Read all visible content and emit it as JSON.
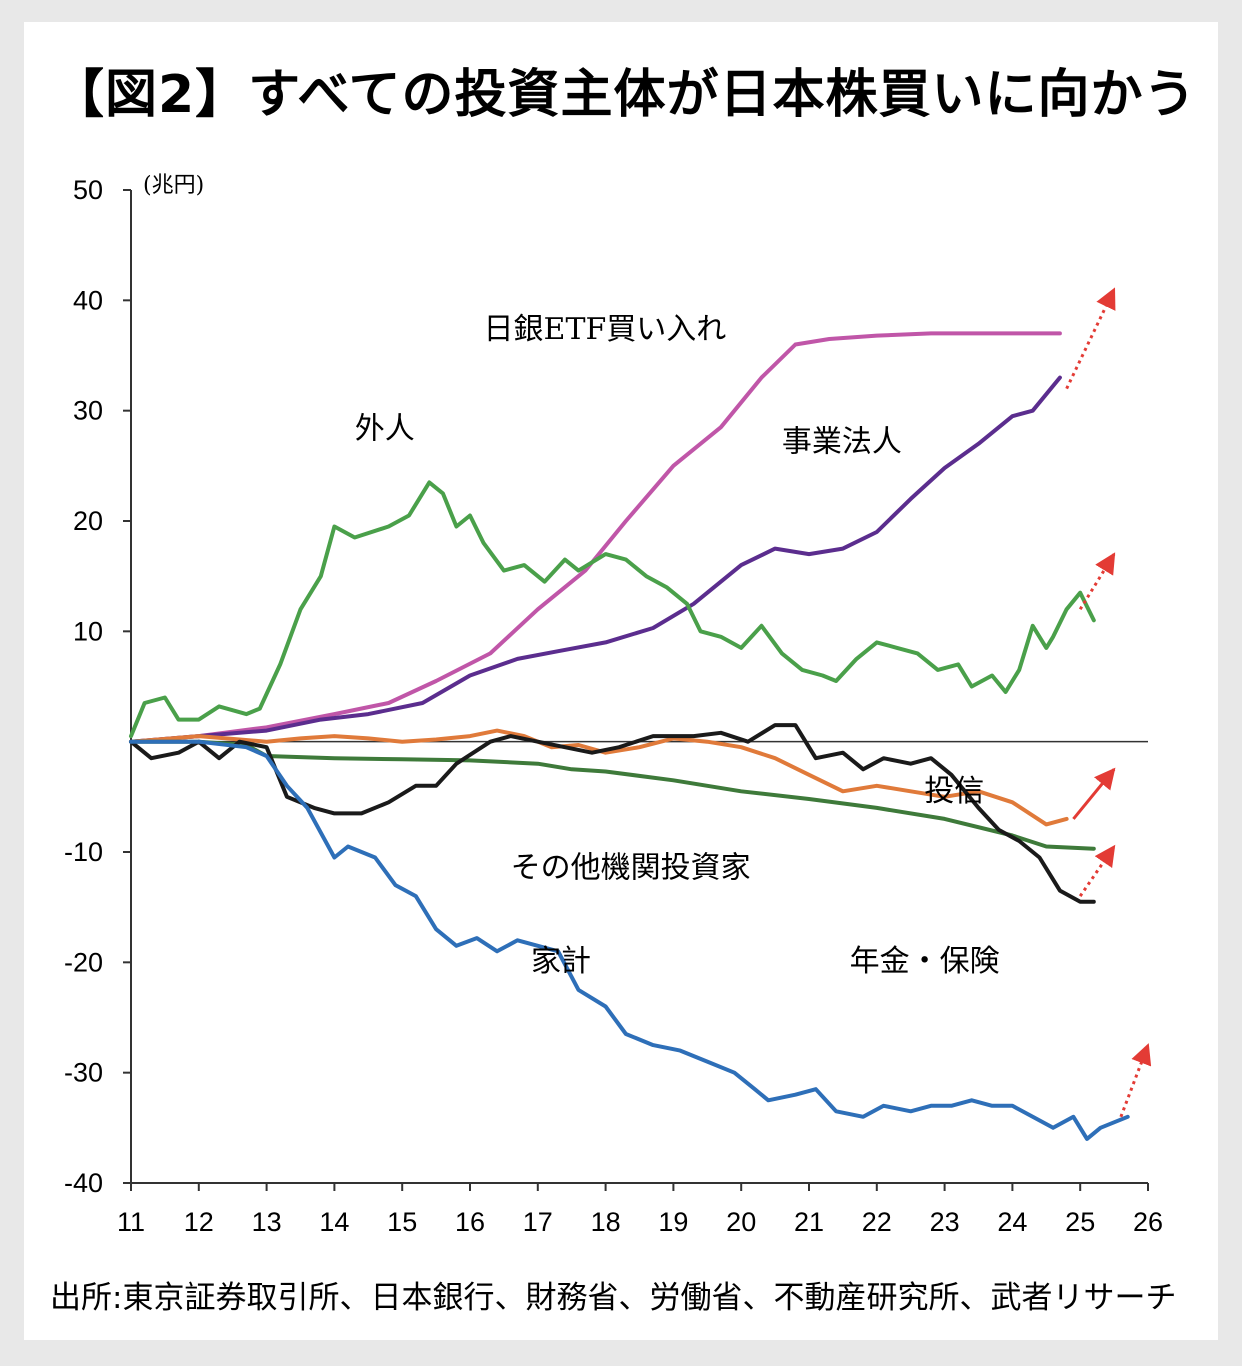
{
  "title": "【図2】すべての投資主体が日本株買いに向かう",
  "source": "出所:東京証券取引所、日本銀行、財務省、労働省、不動産研究所、武者リサーチ",
  "chart_data": {
    "type": "line",
    "unit": "(兆円)",
    "ylim": [
      -40,
      50
    ],
    "yticks": [
      50,
      40,
      30,
      20,
      10,
      -10,
      -20,
      -30,
      -40
    ],
    "xlim": [
      11,
      26
    ],
    "xticks": [
      "11",
      "12",
      "13",
      "14",
      "15",
      "16",
      "17",
      "18",
      "19",
      "20",
      "21",
      "22",
      "23",
      "24",
      "25",
      "26"
    ],
    "series": [
      {
        "name": "日銀ETF買い入れ",
        "color": "#c056a8",
        "points": [
          [
            11,
            0
          ],
          [
            12,
            0.5
          ],
          [
            13,
            1.3
          ],
          [
            14,
            2.5
          ],
          [
            14.8,
            3.5
          ],
          [
            15.5,
            5.5
          ],
          [
            16.3,
            8
          ],
          [
            17,
            12
          ],
          [
            17.7,
            15.5
          ],
          [
            18.3,
            20
          ],
          [
            19,
            25
          ],
          [
            19.7,
            28.5
          ],
          [
            20.3,
            33
          ],
          [
            20.8,
            36
          ],
          [
            21.3,
            36.5
          ],
          [
            22,
            36.8
          ],
          [
            22.8,
            37
          ],
          [
            23.8,
            37
          ],
          [
            24.7,
            37
          ]
        ]
      },
      {
        "name": "事業法人",
        "color": "#5b2d8e",
        "points": [
          [
            11,
            0
          ],
          [
            12,
            0.5
          ],
          [
            13,
            1
          ],
          [
            13.8,
            2
          ],
          [
            14.5,
            2.5
          ],
          [
            15.3,
            3.5
          ],
          [
            16,
            6
          ],
          [
            16.7,
            7.5
          ],
          [
            17.3,
            8.2
          ],
          [
            18,
            9
          ],
          [
            18.7,
            10.3
          ],
          [
            19.3,
            12.5
          ],
          [
            20,
            16
          ],
          [
            20.5,
            17.5
          ],
          [
            21,
            17
          ],
          [
            21.5,
            17.5
          ],
          [
            22,
            19
          ],
          [
            22.5,
            22
          ],
          [
            23,
            24.8
          ],
          [
            23.5,
            27
          ],
          [
            24,
            29.5
          ],
          [
            24.3,
            30
          ],
          [
            24.7,
            33
          ]
        ]
      },
      {
        "name": "外人",
        "color": "#4aa04a",
        "points": [
          [
            11,
            0.5
          ],
          [
            11.2,
            3.5
          ],
          [
            11.5,
            4
          ],
          [
            11.7,
            2
          ],
          [
            12,
            2
          ],
          [
            12.3,
            3.2
          ],
          [
            12.7,
            2.5
          ],
          [
            12.9,
            3
          ],
          [
            13.2,
            7
          ],
          [
            13.5,
            12
          ],
          [
            13.8,
            15
          ],
          [
            14,
            19.5
          ],
          [
            14.3,
            18.5
          ],
          [
            14.8,
            19.5
          ],
          [
            15.1,
            20.5
          ],
          [
            15.4,
            23.5
          ],
          [
            15.6,
            22.5
          ],
          [
            15.8,
            19.5
          ],
          [
            16,
            20.5
          ],
          [
            16.2,
            18
          ],
          [
            16.5,
            15.5
          ],
          [
            16.8,
            16
          ],
          [
            17.1,
            14.5
          ],
          [
            17.4,
            16.5
          ],
          [
            17.6,
            15.5
          ],
          [
            18,
            17
          ],
          [
            18.3,
            16.5
          ],
          [
            18.6,
            15
          ],
          [
            18.9,
            14
          ],
          [
            19.2,
            12.5
          ],
          [
            19.4,
            10
          ],
          [
            19.7,
            9.5
          ],
          [
            20,
            8.5
          ],
          [
            20.3,
            10.5
          ],
          [
            20.6,
            8
          ],
          [
            20.9,
            6.5
          ],
          [
            21.2,
            6
          ],
          [
            21.4,
            5.5
          ],
          [
            21.7,
            7.5
          ],
          [
            22,
            9
          ],
          [
            22.3,
            8.5
          ],
          [
            22.6,
            8
          ],
          [
            22.9,
            6.5
          ],
          [
            23.2,
            7
          ],
          [
            23.4,
            5
          ],
          [
            23.7,
            6
          ],
          [
            23.9,
            4.5
          ],
          [
            24.1,
            6.5
          ],
          [
            24.3,
            10.5
          ],
          [
            24.5,
            8.5
          ],
          [
            24.6,
            9.5
          ],
          [
            24.8,
            12
          ],
          [
            25,
            13.5
          ],
          [
            25.2,
            11
          ]
        ]
      },
      {
        "name": "投信",
        "color": "#e07a3a",
        "points": [
          [
            11,
            0
          ],
          [
            12,
            0.5
          ],
          [
            13,
            0
          ],
          [
            13.5,
            0.3
          ],
          [
            14,
            0.5
          ],
          [
            14.5,
            0.3
          ],
          [
            15,
            0
          ],
          [
            15.5,
            0.2
          ],
          [
            16,
            0.5
          ],
          [
            16.4,
            1
          ],
          [
            16.8,
            0.5
          ],
          [
            17.2,
            -0.5
          ],
          [
            17.6,
            -0.3
          ],
          [
            18,
            -1
          ],
          [
            18.5,
            -0.5
          ],
          [
            19,
            0.3
          ],
          [
            19.5,
            0
          ],
          [
            20,
            -0.5
          ],
          [
            20.5,
            -1.5
          ],
          [
            21,
            -3
          ],
          [
            21.5,
            -4.5
          ],
          [
            22,
            -4
          ],
          [
            22.5,
            -4.5
          ],
          [
            23,
            -5
          ],
          [
            23.5,
            -4.5
          ],
          [
            24,
            -5.5
          ],
          [
            24.5,
            -7.5
          ],
          [
            24.8,
            -7
          ]
        ]
      },
      {
        "name": "その他機関投資家",
        "color": "#3e7a3a",
        "points": [
          [
            11,
            0
          ],
          [
            12,
            0
          ],
          [
            12.7,
            -0.3
          ],
          [
            13,
            -1.3
          ],
          [
            14,
            -1.5
          ],
          [
            15,
            -1.6
          ],
          [
            16,
            -1.7
          ],
          [
            17,
            -2
          ],
          [
            17.5,
            -2.5
          ],
          [
            18,
            -2.7
          ],
          [
            19,
            -3.5
          ],
          [
            20,
            -4.5
          ],
          [
            21,
            -5.2
          ],
          [
            22,
            -6
          ],
          [
            23,
            -7
          ],
          [
            24,
            -8.5
          ],
          [
            24.5,
            -9.5
          ],
          [
            25.2,
            -9.7
          ]
        ]
      },
      {
        "name": "年金・保険",
        "color": "#1a1a1a",
        "points": [
          [
            11,
            0
          ],
          [
            11.3,
            -1.5
          ],
          [
            11.7,
            -1
          ],
          [
            12,
            0
          ],
          [
            12.3,
            -1.5
          ],
          [
            12.6,
            0
          ],
          [
            13,
            -0.5
          ],
          [
            13.3,
            -5
          ],
          [
            13.7,
            -6
          ],
          [
            14,
            -6.5
          ],
          [
            14.4,
            -6.5
          ],
          [
            14.8,
            -5.5
          ],
          [
            15.2,
            -4
          ],
          [
            15.5,
            -4
          ],
          [
            15.8,
            -2
          ],
          [
            16.3,
            0
          ],
          [
            16.6,
            0.5
          ],
          [
            17,
            0
          ],
          [
            17.4,
            -0.5
          ],
          [
            17.8,
            -1
          ],
          [
            18.2,
            -0.5
          ],
          [
            18.7,
            0.5
          ],
          [
            19.3,
            0.5
          ],
          [
            19.7,
            0.8
          ],
          [
            20.1,
            0
          ],
          [
            20.5,
            1.5
          ],
          [
            20.8,
            1.5
          ],
          [
            21.1,
            -1.5
          ],
          [
            21.5,
            -1
          ],
          [
            21.8,
            -2.5
          ],
          [
            22.1,
            -1.5
          ],
          [
            22.5,
            -2
          ],
          [
            22.8,
            -1.5
          ],
          [
            23.1,
            -3
          ],
          [
            23.5,
            -6
          ],
          [
            23.8,
            -8
          ],
          [
            24.1,
            -9
          ],
          [
            24.4,
            -10.5
          ],
          [
            24.7,
            -13.5
          ],
          [
            25,
            -14.5
          ],
          [
            25.2,
            -14.5
          ]
        ]
      },
      {
        "name": "家計",
        "color": "#2e6fb8",
        "points": [
          [
            11,
            0
          ],
          [
            12,
            0
          ],
          [
            12.7,
            -0.5
          ],
          [
            13,
            -1.3
          ],
          [
            13.3,
            -4
          ],
          [
            13.6,
            -6
          ],
          [
            14,
            -10.5
          ],
          [
            14.2,
            -9.5
          ],
          [
            14.6,
            -10.5
          ],
          [
            14.9,
            -13
          ],
          [
            15.2,
            -14
          ],
          [
            15.5,
            -17
          ],
          [
            15.8,
            -18.5
          ],
          [
            16.1,
            -17.8
          ],
          [
            16.4,
            -19
          ],
          [
            16.7,
            -18
          ],
          [
            17,
            -18.5
          ],
          [
            17.3,
            -19
          ],
          [
            17.6,
            -22.5
          ],
          [
            18,
            -24
          ],
          [
            18.3,
            -26.5
          ],
          [
            18.7,
            -27.5
          ],
          [
            19.1,
            -28
          ],
          [
            19.5,
            -29
          ],
          [
            19.9,
            -30
          ],
          [
            20.2,
            -31.5
          ],
          [
            20.4,
            -32.5
          ],
          [
            20.8,
            -32
          ],
          [
            21.1,
            -31.5
          ],
          [
            21.4,
            -33.5
          ],
          [
            21.8,
            -34
          ],
          [
            22.1,
            -33
          ],
          [
            22.5,
            -33.5
          ],
          [
            22.8,
            -33
          ],
          [
            23.1,
            -33
          ],
          [
            23.4,
            -32.5
          ],
          [
            23.7,
            -33
          ],
          [
            24,
            -33
          ],
          [
            24.3,
            -34
          ],
          [
            24.6,
            -35
          ],
          [
            24.9,
            -34
          ],
          [
            25.1,
            -36
          ],
          [
            25.3,
            -35
          ],
          [
            25.5,
            -34.5
          ],
          [
            25.7,
            -34
          ]
        ]
      }
    ],
    "labels": [
      {
        "text": "日銀ETF買い入れ",
        "x": 16.2,
        "y": 36.5
      },
      {
        "text": "事業法人",
        "x": 20.6,
        "y": 26.3
      },
      {
        "text": "外人",
        "x": 14.3,
        "y": 27.5
      },
      {
        "text": "投信",
        "x": 22.7,
        "y": -5.4
      },
      {
        "text": "その他機関投資家",
        "x": 16.6,
        "y": -12.3
      },
      {
        "text": "年金・保険",
        "x": 21.6,
        "y": -20.8
      },
      {
        "text": "家計",
        "x": 16.9,
        "y": -20.8
      }
    ],
    "arrows": [
      {
        "from": [
          24.8,
          32
        ],
        "to": [
          25.5,
          41
        ],
        "style": "dotted"
      },
      {
        "from": [
          25,
          12
        ],
        "to": [
          25.5,
          17
        ],
        "style": "dotted"
      },
      {
        "from": [
          24.9,
          -7
        ],
        "to": [
          25.5,
          -2.5
        ],
        "style": "solid"
      },
      {
        "from": [
          25,
          -14
        ],
        "to": [
          25.5,
          -9.5
        ],
        "style": "dotted"
      },
      {
        "from": [
          25.6,
          -34
        ],
        "to": [
          26,
          -27.5
        ],
        "style": "dotted"
      }
    ]
  }
}
